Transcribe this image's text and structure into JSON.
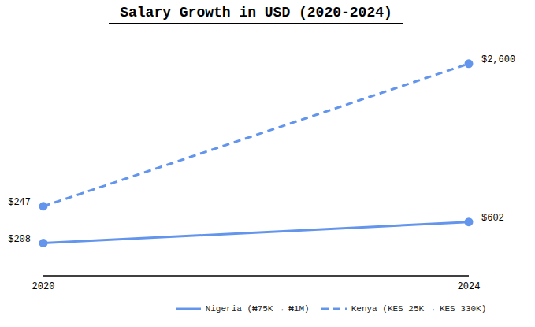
{
  "chart_data": {
    "type": "line",
    "title": "Salary Growth in USD (2020-2024)",
    "categories": [
      "2020",
      "2024"
    ],
    "series": [
      {
        "name": "Nigeria (₦75K → ₦1M)",
        "color": "#6495ed",
        "line_style": "solid",
        "marker": "circle",
        "values": [
          208,
          602
        ],
        "value_labels": [
          "$208",
          "$602"
        ]
      },
      {
        "name": "Kenya (KES 25K → KES 330K)",
        "color": "#6495ed",
        "line_style": "dashed",
        "marker": "circle",
        "axis": "y2",
        "values": [
          247,
          2600
        ],
        "value_labels": [
          "$247",
          "$2,600"
        ]
      }
    ],
    "ylim": [
      -400,
      4000
    ],
    "y2lim": [
      -900,
      3000
    ],
    "data_labels": true,
    "tick_labels": "x",
    "grid": false,
    "legend": "bottom"
  }
}
